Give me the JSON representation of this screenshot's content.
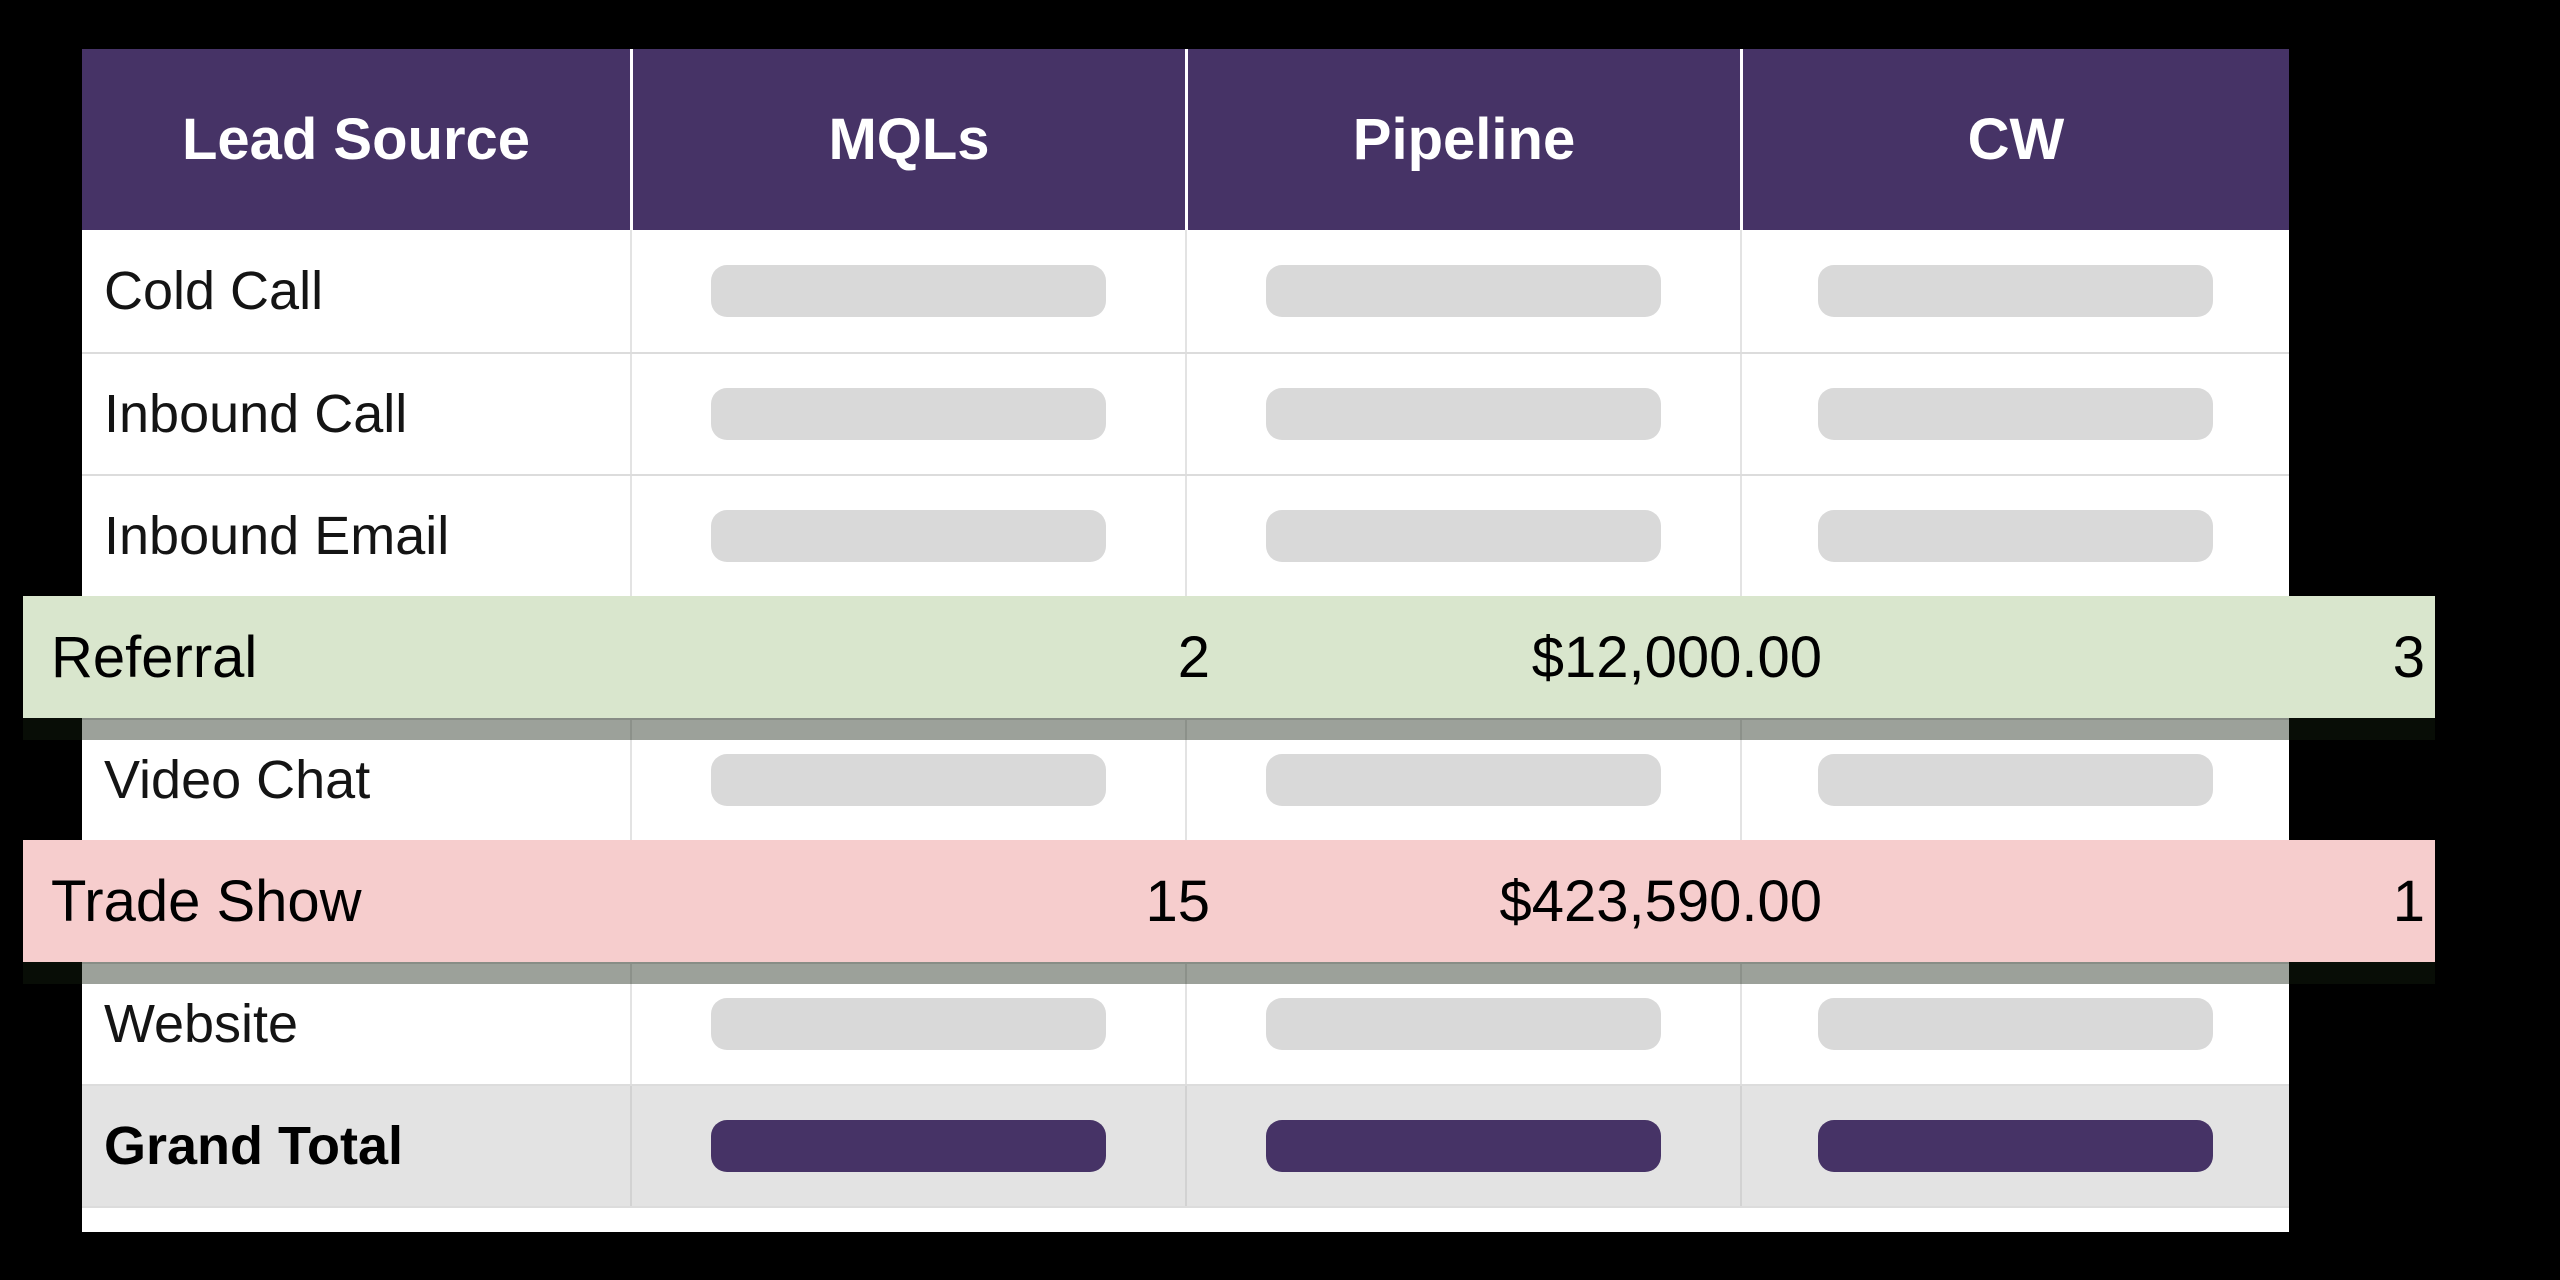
{
  "table": {
    "headers": [
      "Lead Source",
      "MQLs",
      "Pipeline",
      "CW"
    ],
    "rows": [
      {
        "label": "Cold Call",
        "type": "placeholder"
      },
      {
        "label": "Inbound Call",
        "type": "placeholder"
      },
      {
        "label": "Inbound Email",
        "type": "placeholder"
      },
      {
        "label": "Referral",
        "type": "highlight-green",
        "mqls": "2",
        "pipeline": "$12,000.00",
        "cw": "3"
      },
      {
        "label": "Video Chat",
        "type": "placeholder"
      },
      {
        "label": "Trade Show",
        "type": "highlight-red",
        "mqls": "15",
        "pipeline": "$423,590.00",
        "cw": "1"
      },
      {
        "label": "Website",
        "type": "placeholder"
      },
      {
        "label": "Grand Total",
        "type": "total"
      }
    ],
    "colors": {
      "header_bg": "#463366",
      "highlight_green": "#d9e6cd",
      "highlight_pink": "#f6cdcd",
      "placeholder_pill": "#d9d9d9",
      "total_pill": "#463366",
      "total_row_bg": "#e3e3e3"
    }
  }
}
